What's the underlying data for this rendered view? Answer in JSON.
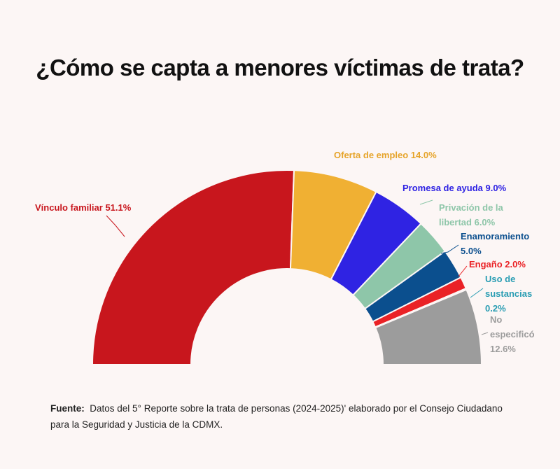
{
  "chart_data": {
    "type": "pie",
    "half": true,
    "title": "¿Cómo se capta a menores víctimas de trata?",
    "categories": [
      "Vínculo familiar",
      "Oferta de empleo",
      "Promesa de ayuda",
      "Privación de la libertad",
      "Enamoramiento",
      "Engaño",
      "Uso de sustancias",
      "No especificó"
    ],
    "values": [
      51.1,
      14.0,
      9.0,
      6.0,
      5.0,
      2.0,
      0.2,
      12.6
    ],
    "value_labels": [
      "51.1%",
      "14.0%",
      "9.0%",
      "6.0%",
      "5.0%",
      "2.0%",
      "0.2%",
      "12.6%"
    ],
    "colors": [
      "#c8161d",
      "#f0b033",
      "#2f23e3",
      "#8ec6a9",
      "#0b4f8e",
      "#ea2226",
      "#2a9db3",
      "#9c9c9c"
    ],
    "label_colors": [
      "#c8161d",
      "#e6a42a",
      "#2f23e3",
      "#8ec6a9",
      "#0b4f8e",
      "#ea2226",
      "#2a9db3",
      "#9c9c9c"
    ],
    "source_label": "Fuente:",
    "source": "Datos del 5° Reporte sobre la trata de personas (2024-2025)' elaborado por el Consejo Ciudadano para la Seguridad y Justicia de la CDMX."
  }
}
